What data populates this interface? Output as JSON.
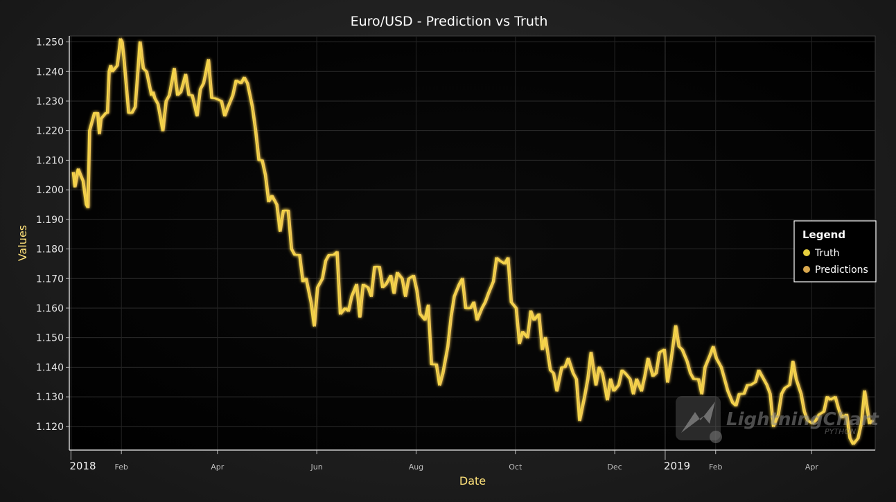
{
  "chart_data": {
    "type": "line",
    "title": "Euro/USD - Prediction vs Truth",
    "xlabel": "Date",
    "ylabel": "Values",
    "ylim": [
      1.112,
      1.252
    ],
    "xlim": [
      "2017-12-31",
      "2019-05-10"
    ],
    "y_ticks": [
      "1.120",
      "1.130",
      "1.140",
      "1.150",
      "1.160",
      "1.170",
      "1.180",
      "1.190",
      "1.200",
      "1.210",
      "1.220",
      "1.230",
      "1.240",
      "1.250"
    ],
    "x_ticks": [
      {
        "date": "2018-01-01",
        "label": "2018",
        "major": true
      },
      {
        "date": "2018-02-01",
        "label": "Feb",
        "major": false
      },
      {
        "date": "2018-04-01",
        "label": "Apr",
        "major": false
      },
      {
        "date": "2018-06-01",
        "label": "Jun",
        "major": false
      },
      {
        "date": "2018-08-01",
        "label": "Aug",
        "major": false
      },
      {
        "date": "2018-10-01",
        "label": "Oct",
        "major": false
      },
      {
        "date": "2018-12-01",
        "label": "Dec",
        "major": false
      },
      {
        "date": "2019-01-01",
        "label": "2019",
        "major": true
      },
      {
        "date": "2019-02-01",
        "label": "Feb",
        "major": false
      },
      {
        "date": "2019-04-01",
        "label": "Apr",
        "major": false
      }
    ],
    "grid": true,
    "legend": {
      "title": "Legend",
      "position": "right"
    },
    "series": [
      {
        "name": "Truth",
        "color": "#f6d648",
        "points": [
          [
            "2018-01-02",
            1.206
          ],
          [
            "2018-01-03",
            1.201
          ],
          [
            "2018-01-05",
            1.207
          ],
          [
            "2018-01-08",
            1.203
          ],
          [
            "2018-01-10",
            1.195
          ],
          [
            "2018-01-11",
            1.194
          ],
          [
            "2018-01-12",
            1.22
          ],
          [
            "2018-01-15",
            1.226
          ],
          [
            "2018-01-17",
            1.226
          ],
          [
            "2018-01-18",
            1.219
          ],
          [
            "2018-01-19",
            1.224
          ],
          [
            "2018-01-22",
            1.226
          ],
          [
            "2018-01-23",
            1.226
          ],
          [
            "2018-01-24",
            1.24
          ],
          [
            "2018-01-25",
            1.242
          ],
          [
            "2018-01-26",
            1.24
          ],
          [
            "2018-01-29",
            1.242
          ],
          [
            "2018-01-31",
            1.251
          ],
          [
            "2018-02-01",
            1.25
          ],
          [
            "2018-02-02",
            1.245
          ],
          [
            "2018-02-05",
            1.226
          ],
          [
            "2018-02-07",
            1.226
          ],
          [
            "2018-02-09",
            1.228
          ],
          [
            "2018-02-12",
            1.25
          ],
          [
            "2018-02-14",
            1.241
          ],
          [
            "2018-02-16",
            1.24
          ],
          [
            "2018-02-19",
            1.232
          ],
          [
            "2018-02-20",
            1.233
          ],
          [
            "2018-02-21",
            1.231
          ],
          [
            "2018-02-23",
            1.229
          ],
          [
            "2018-02-26",
            1.22
          ],
          [
            "2018-02-28",
            1.23
          ],
          [
            "2018-03-02",
            1.232
          ],
          [
            "2018-03-05",
            1.241
          ],
          [
            "2018-03-07",
            1.232
          ],
          [
            "2018-03-09",
            1.233
          ],
          [
            "2018-03-12",
            1.239
          ],
          [
            "2018-03-14",
            1.232
          ],
          [
            "2018-03-16",
            1.232
          ],
          [
            "2018-03-19",
            1.225
          ],
          [
            "2018-03-21",
            1.234
          ],
          [
            "2018-03-23",
            1.236
          ],
          [
            "2018-03-26",
            1.244
          ],
          [
            "2018-03-28",
            1.231
          ],
          [
            "2018-03-30",
            1.231
          ],
          [
            "2018-04-03",
            1.23
          ],
          [
            "2018-04-05",
            1.225
          ],
          [
            "2018-04-07",
            1.228
          ],
          [
            "2018-04-10",
            1.232
          ],
          [
            "2018-04-12",
            1.237
          ],
          [
            "2018-04-15",
            1.236
          ],
          [
            "2018-04-17",
            1.238
          ],
          [
            "2018-04-19",
            1.236
          ],
          [
            "2018-04-22",
            1.228
          ],
          [
            "2018-04-24",
            1.22
          ],
          [
            "2018-04-26",
            1.21
          ],
          [
            "2018-04-28",
            1.21
          ],
          [
            "2018-04-30",
            1.205
          ],
          [
            "2018-05-02",
            1.196
          ],
          [
            "2018-05-04",
            1.198
          ],
          [
            "2018-05-07",
            1.195
          ],
          [
            "2018-05-09",
            1.186
          ],
          [
            "2018-05-11",
            1.193
          ],
          [
            "2018-05-14",
            1.193
          ],
          [
            "2018-05-16",
            1.18
          ],
          [
            "2018-05-18",
            1.178
          ],
          [
            "2018-05-21",
            1.178
          ],
          [
            "2018-05-23",
            1.169
          ],
          [
            "2018-05-25",
            1.17
          ],
          [
            "2018-05-28",
            1.162
          ],
          [
            "2018-05-30",
            1.154
          ],
          [
            "2018-06-01",
            1.167
          ],
          [
            "2018-06-04",
            1.17
          ],
          [
            "2018-06-06",
            1.176
          ],
          [
            "2018-06-08",
            1.178
          ],
          [
            "2018-06-11",
            1.178
          ],
          [
            "2018-06-13",
            1.179
          ],
          [
            "2018-06-15",
            1.158
          ],
          [
            "2018-06-18",
            1.16
          ],
          [
            "2018-06-20",
            1.159
          ],
          [
            "2018-06-22",
            1.164
          ],
          [
            "2018-06-25",
            1.168
          ],
          [
            "2018-06-27",
            1.157
          ],
          [
            "2018-06-29",
            1.168
          ],
          [
            "2018-07-02",
            1.167
          ],
          [
            "2018-07-04",
            1.164
          ],
          [
            "2018-07-06",
            1.174
          ],
          [
            "2018-07-09",
            1.174
          ],
          [
            "2018-07-11",
            1.167
          ],
          [
            "2018-07-13",
            1.168
          ],
          [
            "2018-07-16",
            1.171
          ],
          [
            "2018-07-18",
            1.165
          ],
          [
            "2018-07-20",
            1.172
          ],
          [
            "2018-07-23",
            1.17
          ],
          [
            "2018-07-25",
            1.164
          ],
          [
            "2018-07-27",
            1.17
          ],
          [
            "2018-07-30",
            1.171
          ],
          [
            "2018-08-01",
            1.166
          ],
          [
            "2018-08-03",
            1.158
          ],
          [
            "2018-08-06",
            1.156
          ],
          [
            "2018-08-08",
            1.161
          ],
          [
            "2018-08-10",
            1.141
          ],
          [
            "2018-08-13",
            1.141
          ],
          [
            "2018-08-15",
            1.134
          ],
          [
            "2018-08-17",
            1.138
          ],
          [
            "2018-08-20",
            1.147
          ],
          [
            "2018-08-22",
            1.157
          ],
          [
            "2018-08-24",
            1.164
          ],
          [
            "2018-08-27",
            1.168
          ],
          [
            "2018-08-29",
            1.17
          ],
          [
            "2018-08-31",
            1.16
          ],
          [
            "2018-09-03",
            1.16
          ],
          [
            "2018-09-05",
            1.162
          ],
          [
            "2018-09-07",
            1.156
          ],
          [
            "2018-09-10",
            1.16
          ],
          [
            "2018-09-12",
            1.162
          ],
          [
            "2018-09-14",
            1.165
          ],
          [
            "2018-09-17",
            1.169
          ],
          [
            "2018-09-19",
            1.177
          ],
          [
            "2018-09-21",
            1.176
          ],
          [
            "2018-09-24",
            1.175
          ],
          [
            "2018-09-26",
            1.177
          ],
          [
            "2018-09-28",
            1.162
          ],
          [
            "2018-10-01",
            1.16
          ],
          [
            "2018-10-03",
            1.148
          ],
          [
            "2018-10-05",
            1.152
          ],
          [
            "2018-10-08",
            1.15
          ],
          [
            "2018-10-10",
            1.159
          ],
          [
            "2018-10-12",
            1.156
          ],
          [
            "2018-10-15",
            1.158
          ],
          [
            "2018-10-17",
            1.146
          ],
          [
            "2018-10-19",
            1.15
          ],
          [
            "2018-10-22",
            1.139
          ],
          [
            "2018-10-24",
            1.138
          ],
          [
            "2018-10-26",
            1.132
          ],
          [
            "2018-10-29",
            1.14
          ],
          [
            "2018-10-31",
            1.14
          ],
          [
            "2018-11-02",
            1.143
          ],
          [
            "2018-11-05",
            1.138
          ],
          [
            "2018-11-07",
            1.136
          ],
          [
            "2018-11-09",
            1.122
          ],
          [
            "2018-11-12",
            1.13
          ],
          [
            "2018-11-14",
            1.136
          ],
          [
            "2018-11-16",
            1.145
          ],
          [
            "2018-11-19",
            1.134
          ],
          [
            "2018-11-21",
            1.14
          ],
          [
            "2018-11-23",
            1.138
          ],
          [
            "2018-11-26",
            1.129
          ],
          [
            "2018-11-28",
            1.136
          ],
          [
            "2018-11-30",
            1.132
          ],
          [
            "2018-12-03",
            1.134
          ],
          [
            "2018-12-05",
            1.139
          ],
          [
            "2018-12-07",
            1.138
          ],
          [
            "2018-12-10",
            1.136
          ],
          [
            "2018-12-12",
            1.131
          ],
          [
            "2018-12-14",
            1.136
          ],
          [
            "2018-12-17",
            1.132
          ],
          [
            "2018-12-19",
            1.137
          ],
          [
            "2018-12-21",
            1.143
          ],
          [
            "2018-12-24",
            1.137
          ],
          [
            "2018-12-26",
            1.138
          ],
          [
            "2018-12-28",
            1.145
          ],
          [
            "2018-12-31",
            1.146
          ],
          [
            "2019-01-02",
            1.135
          ],
          [
            "2019-01-04",
            1.142
          ],
          [
            "2019-01-07",
            1.154
          ],
          [
            "2019-01-09",
            1.147
          ],
          [
            "2019-01-11",
            1.146
          ],
          [
            "2019-01-14",
            1.142
          ],
          [
            "2019-01-16",
            1.138
          ],
          [
            "2019-01-18",
            1.136
          ],
          [
            "2019-01-21",
            1.136
          ],
          [
            "2019-01-23",
            1.131
          ],
          [
            "2019-01-25",
            1.14
          ],
          [
            "2019-01-28",
            1.144
          ],
          [
            "2019-01-30",
            1.147
          ],
          [
            "2019-02-01",
            1.143
          ],
          [
            "2019-02-04",
            1.14
          ],
          [
            "2019-02-06",
            1.136
          ],
          [
            "2019-02-08",
            1.132
          ],
          [
            "2019-02-11",
            1.128
          ],
          [
            "2019-02-13",
            1.127
          ],
          [
            "2019-02-15",
            1.131
          ],
          [
            "2019-02-18",
            1.131
          ],
          [
            "2019-02-20",
            1.134
          ],
          [
            "2019-02-22",
            1.134
          ],
          [
            "2019-02-25",
            1.135
          ],
          [
            "2019-02-27",
            1.139
          ],
          [
            "2019-03-01",
            1.137
          ],
          [
            "2019-03-04",
            1.134
          ],
          [
            "2019-03-06",
            1.131
          ],
          [
            "2019-03-08",
            1.12
          ],
          [
            "2019-03-11",
            1.124
          ],
          [
            "2019-03-13",
            1.131
          ],
          [
            "2019-03-15",
            1.133
          ],
          [
            "2019-03-18",
            1.134
          ],
          [
            "2019-03-20",
            1.142
          ],
          [
            "2019-03-22",
            1.136
          ],
          [
            "2019-03-25",
            1.131
          ],
          [
            "2019-03-27",
            1.125
          ],
          [
            "2019-03-29",
            1.122
          ],
          [
            "2019-04-01",
            1.121
          ],
          [
            "2019-04-03",
            1.122
          ],
          [
            "2019-04-05",
            1.124
          ],
          [
            "2019-04-08",
            1.125
          ],
          [
            "2019-04-10",
            1.13
          ],
          [
            "2019-04-12",
            1.129
          ],
          [
            "2019-04-15",
            1.13
          ],
          [
            "2019-04-17",
            1.126
          ],
          [
            "2019-04-19",
            1.123
          ],
          [
            "2019-04-22",
            1.124
          ],
          [
            "2019-04-24",
            1.116
          ],
          [
            "2019-04-26",
            1.114
          ],
          [
            "2019-04-29",
            1.116
          ],
          [
            "2019-05-01",
            1.121
          ],
          [
            "2019-05-03",
            1.132
          ],
          [
            "2019-05-06",
            1.121
          ],
          [
            "2019-05-08",
            1.122
          ]
        ]
      },
      {
        "name": "Predictions",
        "color": "#f0c45a",
        "lag_days": 1
      }
    ]
  },
  "watermark": {
    "brand": "LightningChart",
    "sub": "PYTHON"
  }
}
